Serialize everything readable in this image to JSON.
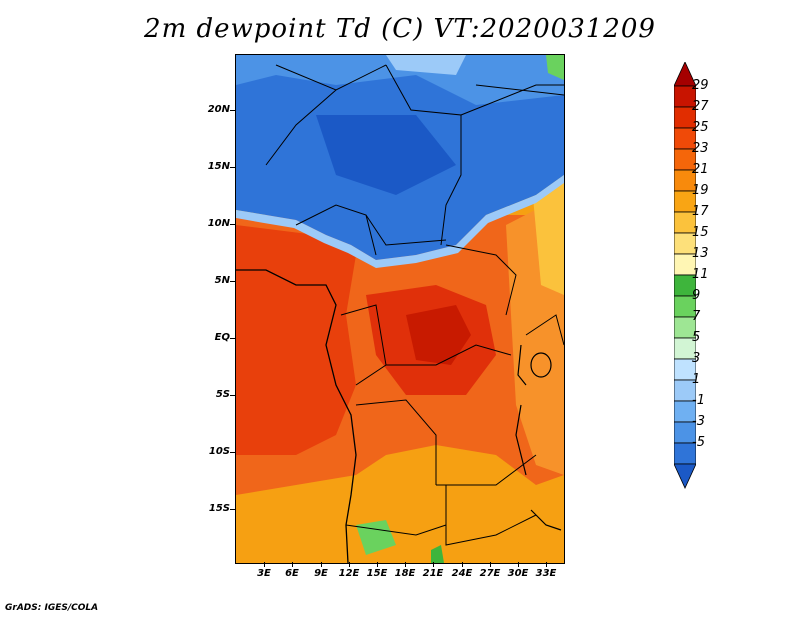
{
  "title": "2m dewpoint Td (C) VT:2020031209",
  "footer": "GrADS: IGES/COLA",
  "lat_labels": [
    "20N",
    "15N",
    "10N",
    "5N",
    "EQ",
    "5S",
    "10S",
    "15S"
  ],
  "lon_labels": [
    "3E",
    "6E",
    "9E",
    "12E",
    "15E",
    "18E",
    "21E",
    "24E",
    "27E",
    "30E",
    "33E"
  ],
  "colorbar": {
    "labels": [
      "29",
      "27",
      "25",
      "23",
      "21",
      "19",
      "17",
      "15",
      "13",
      "11",
      "9",
      "7",
      "5",
      "3",
      "1",
      "-1",
      "-3",
      "-5"
    ],
    "colors": [
      "#a50000",
      "#c81400",
      "#e12d00",
      "#f04a08",
      "#f5660a",
      "#f88a0c",
      "#f9a514",
      "#fbc23c",
      "#fde07a",
      "#fff6b4",
      "#3eb53c",
      "#6ad25e",
      "#9ee694",
      "#d2f5d4",
      "#bfe2ff",
      "#9ccaf8",
      "#6fb0f2",
      "#4c93e6",
      "#2f74d8",
      "#1b59c6"
    ]
  }
}
